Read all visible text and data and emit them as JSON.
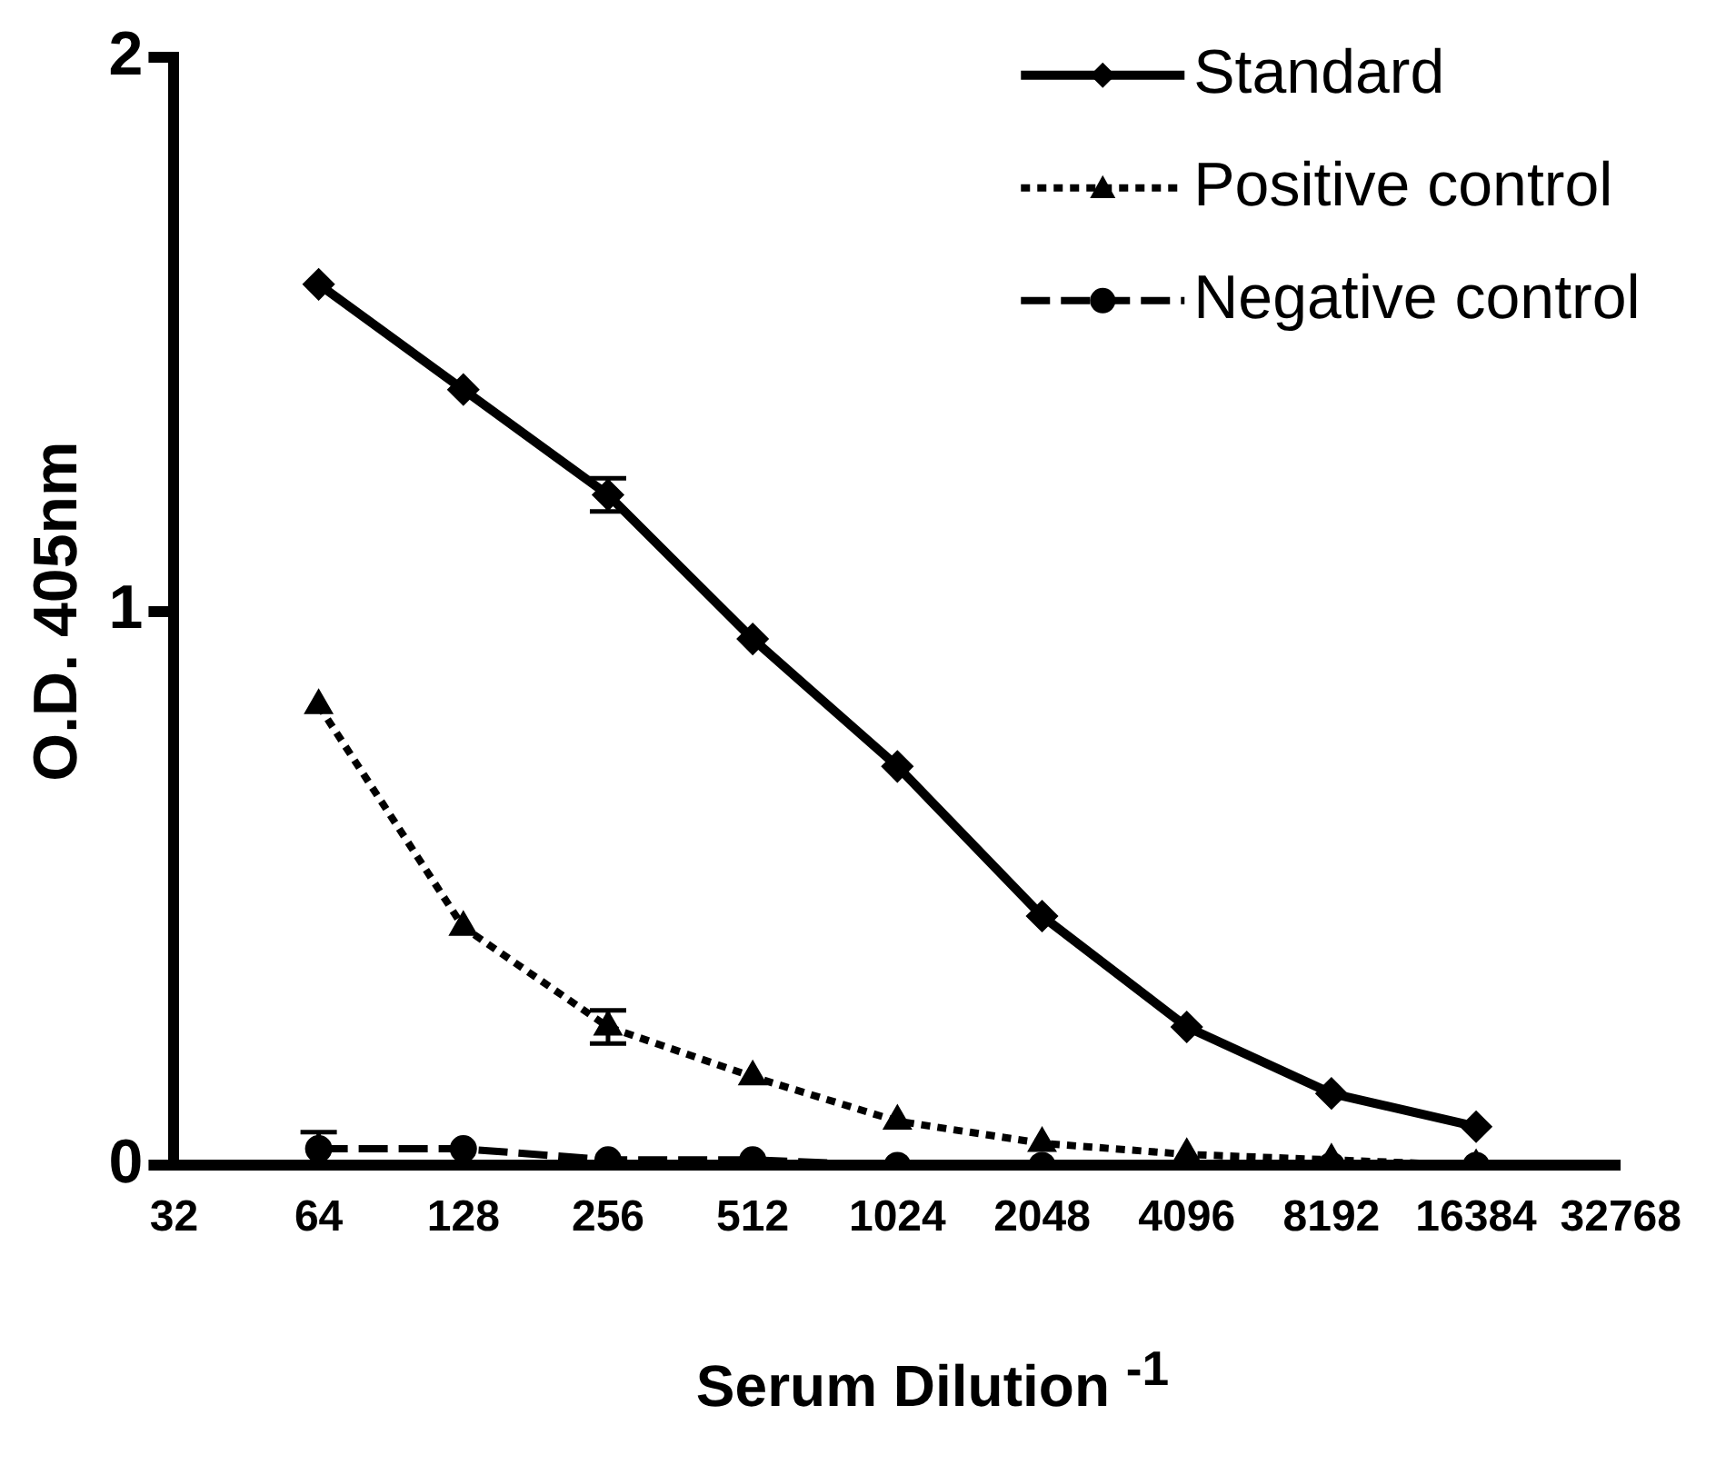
{
  "chart_data": {
    "type": "line",
    "xlabel": "Serum Dilution $^{-1}$",
    "ylabel": "O.D. 405nm",
    "x": [
      64,
      128,
      256,
      512,
      1024,
      2048,
      4096,
      8192,
      16384
    ],
    "log": "x",
    "xlim": [
      32,
      32768
    ],
    "xticks": [
      32,
      64,
      128,
      256,
      512,
      1024,
      2048,
      4096,
      8192,
      16384,
      32768
    ],
    "ylim": [
      0,
      2
    ],
    "yticks": [
      0,
      1,
      2
    ],
    "grid": false,
    "legend": "top right",
    "series": [
      {
        "name": "Standard",
        "color": "#000000",
        "marker": "diamond",
        "line_style": "solid",
        "values": [
          1.59,
          1.4,
          1.21,
          0.95,
          0.72,
          0.45,
          0.25,
          0.13,
          0.07
        ],
        "errors": [
          null,
          null,
          0.03,
          null,
          null,
          null,
          null,
          null,
          null
        ]
      },
      {
        "name": "Positive control",
        "color": "#000000",
        "marker": "triangle",
        "line_style": "dotted",
        "values": [
          0.83,
          0.43,
          0.25,
          0.16,
          0.08,
          0.04,
          0.02,
          0.01,
          0.0
        ],
        "errors": [
          null,
          null,
          0.03,
          null,
          null,
          null,
          null,
          null,
          null
        ]
      },
      {
        "name": "Negative control",
        "color": "#000000",
        "marker": "circle",
        "line_style": "dashed",
        "values": [
          0.03,
          0.03,
          0.01,
          0.01,
          0.0,
          0.0,
          0.0,
          0.0,
          0.0
        ],
        "errors": [
          0.03,
          null,
          null,
          null,
          null,
          null,
          null,
          null,
          null
        ]
      }
    ]
  }
}
